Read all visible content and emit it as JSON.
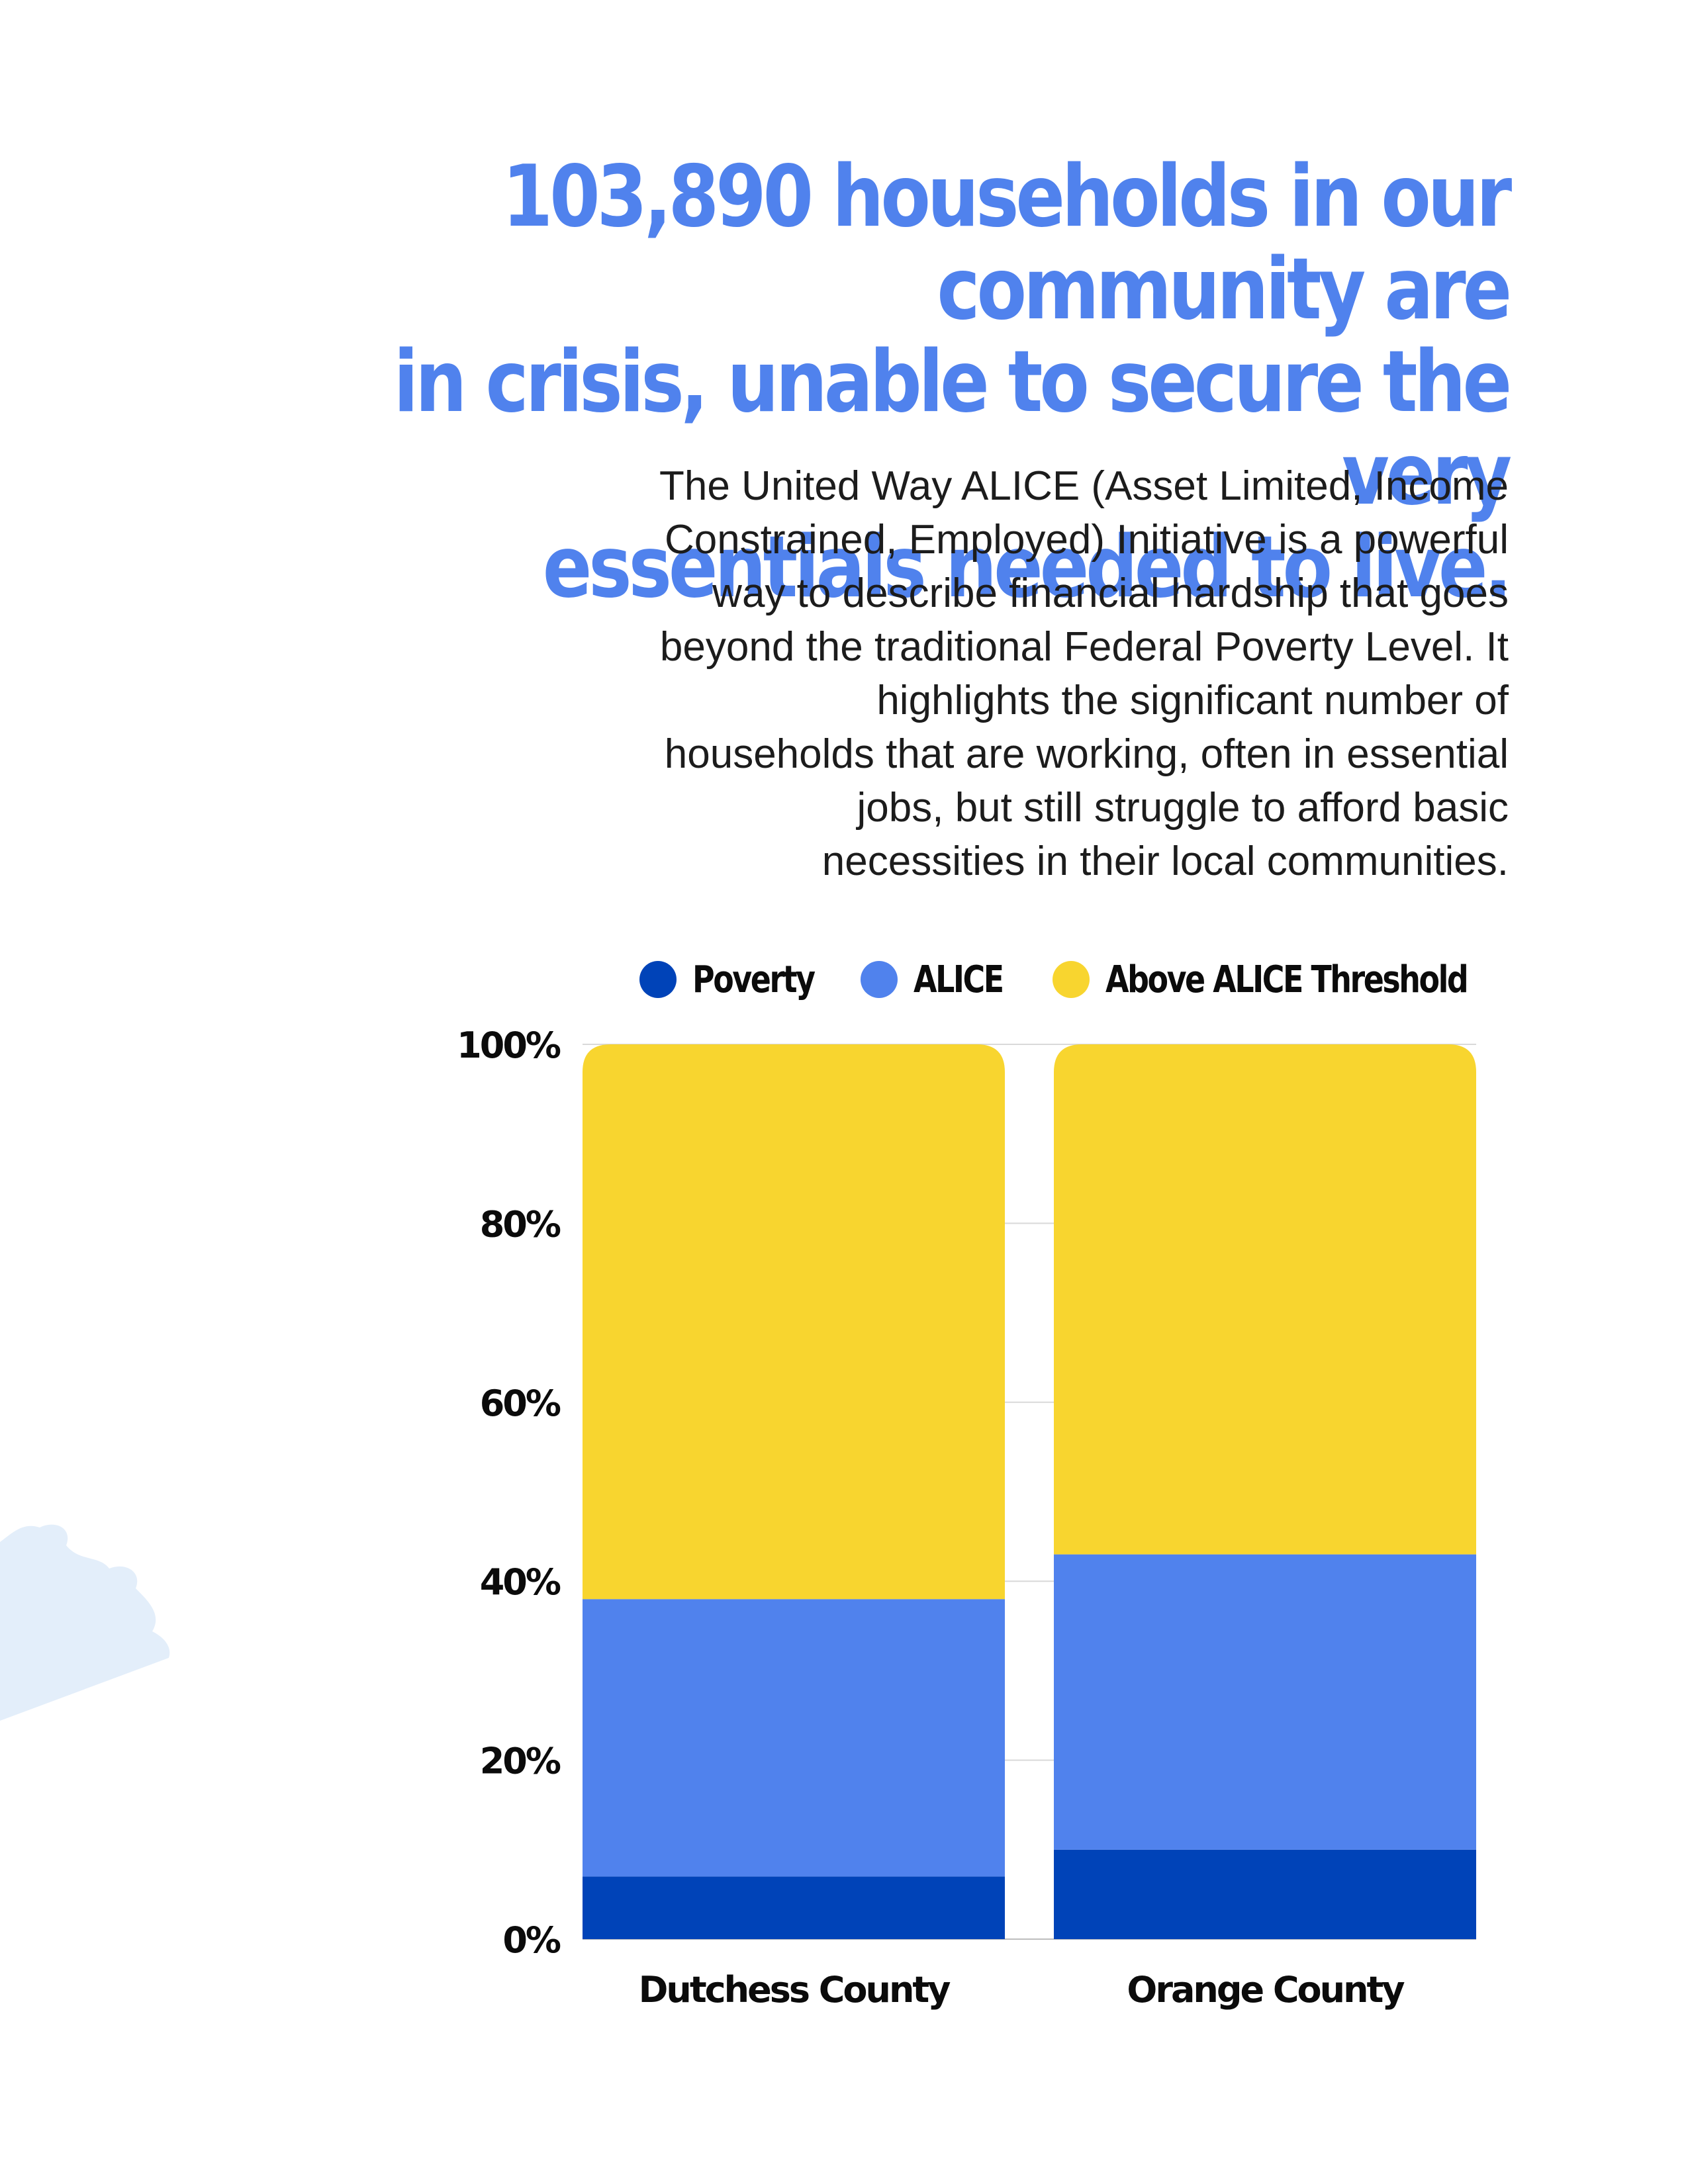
{
  "headline": [
    "103,890 households in our community are",
    "in crisis, unable to secure the very",
    "essentials needed to live."
  ],
  "intro": [
    "The United Way ALICE (Asset Limited, Income",
    "Constrained, Employed) Initiative is a powerful",
    "way to describe financial hardship that goes",
    "beyond the traditional Federal Poverty Level. It",
    "highlights the significant number of",
    "households that are working, often in essential",
    "jobs, but still struggle to afford basic",
    "necessities in their local communities."
  ],
  "colors": {
    "headline": "#5082ED",
    "poverty": "#0043B8",
    "alice": "#5082ED",
    "above": "#F8D52F",
    "gridline": "#d9d9d9",
    "decoration": "#E3EEFA"
  },
  "chart_data": {
    "type": "bar",
    "stacked": true,
    "categories": [
      "Dutchess County",
      "Orange County"
    ],
    "series": [
      {
        "name": "Poverty",
        "values": [
          7,
          10
        ]
      },
      {
        "name": "ALICE",
        "values": [
          31,
          33
        ]
      },
      {
        "name": "Above ALICE Threshold",
        "values": [
          62,
          57
        ]
      }
    ],
    "yticks": [
      "0%",
      "20%",
      "40%",
      "60%",
      "80%",
      "100%"
    ],
    "ylim": [
      0,
      100
    ],
    "grid": true,
    "legend": "top"
  }
}
